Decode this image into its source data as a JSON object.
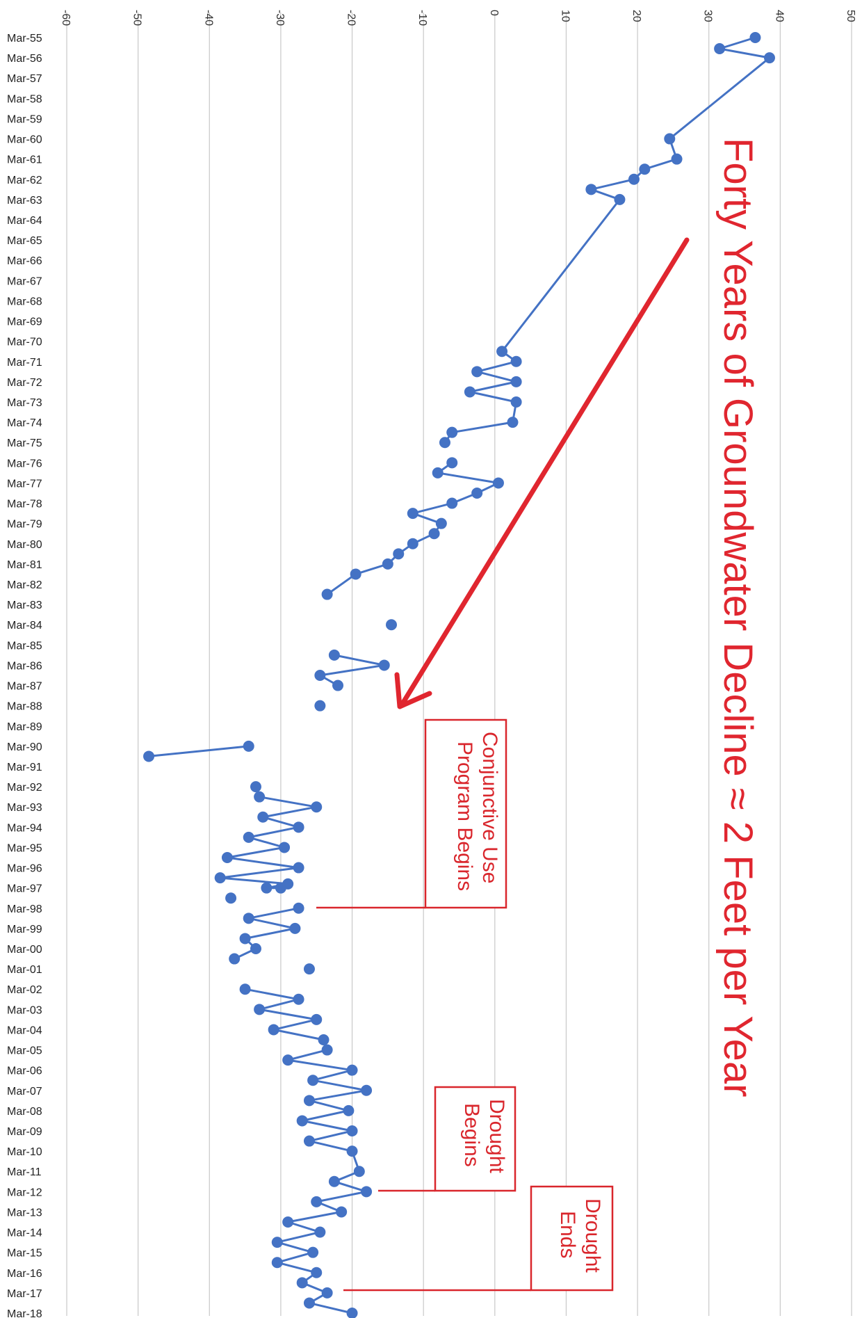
{
  "chart_data": {
    "type": "line",
    "title": "Forty Years of Groundwater Decline ≈ 2 Feet per Year",
    "xlabel": "",
    "ylabel": "",
    "orientation": "value axis on top, rotated labels",
    "ylim": [
      -60,
      50
    ],
    "y_ticks": [
      "-60",
      "-50",
      "-40",
      "-30",
      "-20",
      "-10",
      "0",
      "10",
      "20",
      "30",
      "40",
      "50"
    ],
    "grid": true,
    "categories": [
      "Mar-55",
      "Mar-56",
      "Mar-57",
      "Mar-58",
      "Mar-59",
      "Mar-60",
      "Mar-61",
      "Mar-62",
      "Mar-63",
      "Mar-64",
      "Mar-65",
      "Mar-66",
      "Mar-67",
      "Mar-68",
      "Mar-69",
      "Mar-70",
      "Mar-71",
      "Mar-72",
      "Mar-73",
      "Mar-74",
      "Mar-75",
      "Mar-76",
      "Mar-77",
      "Mar-78",
      "Mar-79",
      "Mar-80",
      "Mar-81",
      "Mar-82",
      "Mar-83",
      "Mar-84",
      "Mar-85",
      "Mar-86",
      "Mar-87",
      "Mar-88",
      "Mar-89",
      "Mar-90",
      "Mar-91",
      "Mar-92",
      "Mar-93",
      "Mar-94",
      "Mar-95",
      "Mar-96",
      "Mar-97",
      "Mar-98",
      "Mar-99",
      "Mar-00",
      "Mar-01",
      "Mar-02",
      "Mar-03",
      "Mar-04",
      "Mar-05",
      "Mar-06",
      "Mar-07",
      "Mar-08",
      "Mar-09",
      "Mar-10",
      "Mar-11",
      "Mar-12",
      "Mar-13",
      "Mar-14",
      "Mar-15",
      "Mar-16",
      "Mar-17",
      "Mar-18"
    ],
    "series": [
      {
        "color": "#4472c4",
        "points": [
          {
            "t": 0.0,
            "v": 36.5
          },
          {
            "t": 0.55,
            "v": 31.5
          },
          {
            "t": 1.0,
            "v": 38.5
          },
          {
            "t": 5.0,
            "v": 24.5
          },
          {
            "t": 6.0,
            "v": 25.5
          },
          {
            "t": 6.5,
            "v": 21.0
          },
          {
            "t": 7.0,
            "v": 19.5
          },
          {
            "t": 7.5,
            "v": 13.5
          },
          {
            "t": 8.0,
            "v": 17.5
          },
          {
            "t": 15.5,
            "v": 1.0
          },
          {
            "t": 16.0,
            "v": 3.0
          },
          {
            "t": 16.5,
            "v": -2.5
          },
          {
            "t": 17.0,
            "v": 3.0
          },
          {
            "t": 17.5,
            "v": -3.5
          },
          {
            "t": 18.0,
            "v": 3.0
          },
          {
            "t": 19.0,
            "v": 2.5
          },
          {
            "t": 19.5,
            "v": -6.0
          },
          {
            "t": 20.0,
            "v": -7.0
          },
          {
            "t": null,
            "v": null
          },
          {
            "t": 21.0,
            "v": -6.0
          },
          {
            "t": 21.5,
            "v": -8.0
          },
          {
            "t": 22.0,
            "v": 0.5
          },
          {
            "t": 22.5,
            "v": -2.5
          },
          {
            "t": 23.0,
            "v": -6.0
          },
          {
            "t": 23.5,
            "v": -11.5
          },
          {
            "t": 24.0,
            "v": -7.5
          },
          {
            "t": 24.5,
            "v": -8.5
          },
          {
            "t": 25.0,
            "v": -11.5
          },
          {
            "t": 25.5,
            "v": -13.5
          },
          {
            "t": 26.0,
            "v": -15.0
          },
          {
            "t": 26.5,
            "v": -19.5
          },
          {
            "t": 27.5,
            "v": -23.5
          },
          {
            "t": null,
            "v": null
          },
          {
            "t": 29.0,
            "v": -14.5
          },
          {
            "t": null,
            "v": null
          },
          {
            "t": 30.5,
            "v": -22.5
          },
          {
            "t": 31.0,
            "v": -15.5
          },
          {
            "t": 31.5,
            "v": -24.5
          },
          {
            "t": 32.0,
            "v": -22.0
          },
          {
            "t": null,
            "v": null
          },
          {
            "t": 33.0,
            "v": -24.5
          },
          {
            "t": null,
            "v": null
          },
          {
            "t": 35.5,
            "v": -48.5
          },
          {
            "t": 35.0,
            "v": -34.5
          },
          {
            "t": null,
            "v": null
          },
          {
            "t": 37.0,
            "v": -33.5
          },
          {
            "t": 37.5,
            "v": -33.0
          },
          {
            "t": 38.0,
            "v": -25.0
          },
          {
            "t": 38.5,
            "v": -32.5
          },
          {
            "t": 39.0,
            "v": -27.5
          },
          {
            "t": 39.5,
            "v": -34.5
          },
          {
            "t": 40.0,
            "v": -29.5
          },
          {
            "t": 40.5,
            "v": -37.5
          },
          {
            "t": 41.0,
            "v": -27.5
          },
          {
            "t": 41.5,
            "v": -38.5
          },
          {
            "t": 41.8,
            "v": -29.0
          },
          {
            "t": 42.0,
            "v": -32.0
          },
          {
            "t": 42.0,
            "v": -30.0
          },
          {
            "t": null,
            "v": null
          },
          {
            "t": 42.5,
            "v": -37.0
          },
          {
            "t": null,
            "v": null
          },
          {
            "t": 43.0,
            "v": -27.5
          },
          {
            "t": 43.5,
            "v": -34.5
          },
          {
            "t": 44.0,
            "v": -28.0
          },
          {
            "t": 44.5,
            "v": -35.0
          },
          {
            "t": 45.0,
            "v": -33.5
          },
          {
            "t": 45.5,
            "v": -36.5
          },
          {
            "t": null,
            "v": null
          },
          {
            "t": 46.0,
            "v": -26.0
          },
          {
            "t": null,
            "v": null
          },
          {
            "t": 47.0,
            "v": -35.0
          },
          {
            "t": 47.5,
            "v": -27.5
          },
          {
            "t": 48.0,
            "v": -33.0
          },
          {
            "t": 48.5,
            "v": -25.0
          },
          {
            "t": 49.0,
            "v": -31.0
          },
          {
            "t": 49.5,
            "v": -24.0
          },
          {
            "t": null,
            "v": null
          },
          {
            "t": 50.0,
            "v": -23.5
          },
          {
            "t": 50.5,
            "v": -29.0
          },
          {
            "t": 51.0,
            "v": -20.0
          },
          {
            "t": 51.5,
            "v": -25.5
          },
          {
            "t": 52.0,
            "v": -18.0
          },
          {
            "t": 52.5,
            "v": -26.0
          },
          {
            "t": 53.0,
            "v": -20.5
          },
          {
            "t": 53.5,
            "v": -27.0
          },
          {
            "t": 54.0,
            "v": -20.0
          },
          {
            "t": 54.5,
            "v": -26.0
          },
          {
            "t": 55.0,
            "v": -20.0
          },
          {
            "t": 56.0,
            "v": -19.0
          },
          {
            "t": 56.5,
            "v": -22.5
          },
          {
            "t": 57.0,
            "v": -18.0
          },
          {
            "t": 57.5,
            "v": -25.0
          },
          {
            "t": 58.0,
            "v": -21.5
          },
          {
            "t": 58.5,
            "v": -29.0
          },
          {
            "t": 59.0,
            "v": -24.5
          },
          {
            "t": 59.5,
            "v": -30.5
          },
          {
            "t": 60.0,
            "v": -25.5
          },
          {
            "t": 60.5,
            "v": -30.5
          },
          {
            "t": 61.0,
            "v": -25.0
          },
          {
            "t": 61.5,
            "v": -27.0
          },
          {
            "t": 62.0,
            "v": -23.5
          },
          {
            "t": 62.5,
            "v": -26.0
          },
          {
            "t": 63.0,
            "v": -20.0
          }
        ]
      }
    ],
    "annotations": [
      {
        "id": "conjunctive",
        "lines": [
          "Conjunctive Use",
          "Program Begins"
        ],
        "at_category": "Mar-98",
        "value": -25
      },
      {
        "id": "drought-begins",
        "lines": [
          "Drought",
          "Begins"
        ],
        "at_category": "Mar-12",
        "value": -16
      },
      {
        "id": "drought-ends",
        "lines": [
          "Drought",
          "Ends"
        ],
        "at_category": "Mar-17",
        "value": -21
      }
    ]
  }
}
